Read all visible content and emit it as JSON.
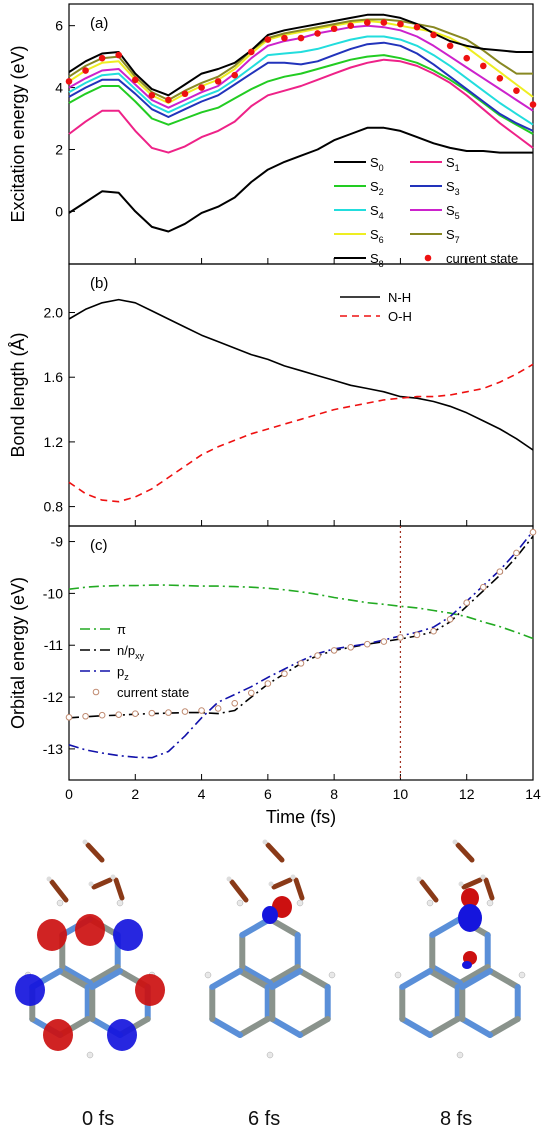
{
  "figure": {
    "x_label": "Time (fs)",
    "x_ticks": [
      "0",
      "2",
      "4",
      "6",
      "8",
      "10",
      "12",
      "14"
    ],
    "snapshot_labels": [
      "0 fs",
      "6 fs",
      "8 fs"
    ]
  },
  "chart_data": [
    {
      "panel_tag": "(a)",
      "type": "line",
      "ylabel": "Excitation energy (eV)",
      "xlim": [
        0,
        14
      ],
      "ylim": [
        -1.7,
        6.7
      ],
      "yticks": [
        "0",
        "2",
        "4",
        "6"
      ],
      "x": [
        0,
        0.5,
        1,
        1.5,
        2,
        2.5,
        3,
        3.5,
        4,
        4.5,
        5,
        5.5,
        6,
        6.5,
        7,
        7.5,
        8,
        8.5,
        9,
        9.5,
        10,
        10.5,
        11,
        11.5,
        12,
        12.5,
        13,
        13.5,
        14
      ],
      "legend_position": "bottom-right",
      "series": [
        {
          "name": "S0",
          "sub": "0",
          "color": "#000000",
          "values": [
            -0.05,
            0.3,
            0.65,
            0.6,
            0.0,
            -0.5,
            -0.65,
            -0.4,
            -0.05,
            0.15,
            0.45,
            0.95,
            1.35,
            1.6,
            1.8,
            2.0,
            2.3,
            2.5,
            2.7,
            2.7,
            2.6,
            2.4,
            2.2,
            2.05,
            1.95,
            1.95,
            1.9,
            1.9,
            1.9
          ]
        },
        {
          "name": "S1",
          "sub": "1",
          "color": "#ee2288",
          "values": [
            2.5,
            2.9,
            3.25,
            3.25,
            2.6,
            2.05,
            1.9,
            2.1,
            2.4,
            2.6,
            2.9,
            3.4,
            3.75,
            3.9,
            4.05,
            4.25,
            4.45,
            4.65,
            4.8,
            4.9,
            4.85,
            4.7,
            4.45,
            4.15,
            3.75,
            3.3,
            2.85,
            2.45,
            2.05
          ]
        },
        {
          "name": "S2",
          "sub": "2",
          "color": "#22cc22",
          "values": [
            3.5,
            3.8,
            4.05,
            4.05,
            3.55,
            3.0,
            2.8,
            3.0,
            3.2,
            3.35,
            3.65,
            3.95,
            4.2,
            4.35,
            4.45,
            4.6,
            4.75,
            4.9,
            5.0,
            5.05,
            4.95,
            4.8,
            4.55,
            4.25,
            3.9,
            3.5,
            3.1,
            2.8,
            2.5
          ]
        },
        {
          "name": "S3",
          "sub": "3",
          "color": "#2233bb",
          "values": [
            3.7,
            4.0,
            4.25,
            4.25,
            3.8,
            3.3,
            3.05,
            3.3,
            3.55,
            3.75,
            4.1,
            4.45,
            4.8,
            4.8,
            4.75,
            4.85,
            5.05,
            5.25,
            5.4,
            5.45,
            5.35,
            5.1,
            4.75,
            4.35,
            3.95,
            3.55,
            3.15,
            2.85,
            2.6
          ]
        },
        {
          "name": "S4",
          "sub": "4",
          "color": "#22dddd",
          "values": [
            3.85,
            4.15,
            4.4,
            4.45,
            3.95,
            3.45,
            3.2,
            3.45,
            3.7,
            3.9,
            4.25,
            4.65,
            5.05,
            5.1,
            5.15,
            5.25,
            5.4,
            5.55,
            5.65,
            5.65,
            5.55,
            5.35,
            5.05,
            4.7,
            4.3,
            3.9,
            3.5,
            3.15,
            2.8
          ]
        },
        {
          "name": "S5",
          "sub": "5",
          "color": "#cc22cc",
          "values": [
            4.0,
            4.3,
            4.55,
            4.6,
            4.1,
            3.6,
            3.35,
            3.6,
            3.85,
            4.05,
            4.45,
            4.95,
            5.35,
            5.5,
            5.6,
            5.75,
            5.85,
            5.95,
            6.0,
            5.95,
            5.85,
            5.65,
            5.35,
            5.0,
            4.65,
            4.3,
            3.95,
            3.6,
            3.25
          ]
        },
        {
          "name": "S6",
          "sub": "6",
          "color": "#eeee22",
          "values": [
            4.2,
            4.55,
            4.8,
            4.85,
            4.25,
            3.75,
            3.5,
            3.8,
            4.05,
            4.25,
            4.6,
            5.1,
            5.55,
            5.7,
            5.8,
            5.9,
            6.0,
            6.1,
            6.15,
            6.1,
            6.0,
            5.9,
            5.8,
            5.6,
            5.3,
            4.9,
            4.5,
            4.1,
            3.7
          ]
        },
        {
          "name": "S7",
          "sub": "7",
          "color": "#888822",
          "values": [
            4.35,
            4.7,
            4.95,
            5.0,
            4.35,
            3.85,
            3.6,
            3.9,
            4.15,
            4.35,
            4.7,
            5.2,
            5.6,
            5.75,
            5.85,
            5.95,
            6.05,
            6.15,
            6.2,
            6.2,
            6.15,
            6.05,
            5.95,
            5.75,
            5.55,
            5.2,
            4.8,
            4.45,
            4.45
          ]
        },
        {
          "name": "S8",
          "sub": "8",
          "color": "#000000",
          "values": [
            4.5,
            4.85,
            5.1,
            5.15,
            4.45,
            3.95,
            3.75,
            4.1,
            4.45,
            4.6,
            4.8,
            5.2,
            5.7,
            5.85,
            5.95,
            6.05,
            6.15,
            6.25,
            6.35,
            6.35,
            6.25,
            6.05,
            5.75,
            5.5,
            5.35,
            5.25,
            5.2,
            5.15,
            5.15
          ]
        },
        {
          "name": "current state",
          "marker": "dot",
          "color": "#ee1111",
          "x": [
            0,
            0.5,
            1,
            1.5,
            2,
            2.5,
            3,
            3.5,
            4,
            4.5,
            5,
            5.5,
            6,
            6.5,
            7,
            7.5,
            8,
            8.5,
            9,
            9.5,
            10,
            10.5,
            11,
            11.5,
            12,
            12.5,
            13,
            13.5,
            14
          ],
          "values": [
            4.2,
            4.55,
            4.95,
            5.05,
            4.25,
            3.75,
            3.6,
            3.8,
            4.0,
            4.2,
            4.4,
            5.15,
            5.55,
            5.6,
            5.6,
            5.75,
            5.9,
            6.0,
            6.1,
            6.1,
            6.05,
            5.95,
            5.7,
            5.35,
            4.95,
            4.7,
            4.3,
            3.9,
            3.45
          ]
        }
      ]
    },
    {
      "panel_tag": "(b)",
      "type": "line",
      "ylabel": "Bond length (Å)",
      "xlim": [
        0,
        14
      ],
      "ylim": [
        0.68,
        2.3
      ],
      "yticks": [
        "0.8",
        "1.2",
        "1.6",
        "2.0"
      ],
      "x": [
        0,
        0.5,
        1,
        1.5,
        2,
        2.5,
        3,
        3.5,
        4,
        4.5,
        5,
        5.5,
        6,
        6.5,
        7,
        7.5,
        8,
        8.5,
        9,
        9.5,
        10,
        10.5,
        11,
        11.5,
        12,
        12.5,
        13,
        13.5,
        14
      ],
      "legend_position": "top-right",
      "series": [
        {
          "name": "N-H",
          "color": "#000000",
          "dash": "",
          "values": [
            1.96,
            2.02,
            2.06,
            2.08,
            2.06,
            2.01,
            1.96,
            1.91,
            1.86,
            1.82,
            1.78,
            1.74,
            1.71,
            1.67,
            1.64,
            1.61,
            1.58,
            1.55,
            1.53,
            1.51,
            1.48,
            1.47,
            1.45,
            1.42,
            1.38,
            1.33,
            1.28,
            1.22,
            1.15
          ]
        },
        {
          "name": "O-H",
          "color": "#ee1111",
          "dash": "7,5",
          "values": [
            0.95,
            0.88,
            0.84,
            0.83,
            0.86,
            0.91,
            0.98,
            1.05,
            1.12,
            1.17,
            1.21,
            1.25,
            1.28,
            1.31,
            1.34,
            1.37,
            1.4,
            1.42,
            1.44,
            1.46,
            1.47,
            1.48,
            1.48,
            1.49,
            1.51,
            1.53,
            1.57,
            1.62,
            1.68
          ]
        }
      ]
    },
    {
      "panel_tag": "(c)",
      "type": "line",
      "ylabel": "Orbital energy (eV)",
      "xlim": [
        0,
        14
      ],
      "ylim": [
        -13.6,
        -8.7
      ],
      "yticks": [
        "-13",
        "-12",
        "-11",
        "-10",
        "-9"
      ],
      "x": [
        0,
        0.5,
        1,
        1.5,
        2,
        2.5,
        3,
        3.5,
        4,
        4.5,
        5,
        5.5,
        6,
        6.5,
        7,
        7.5,
        8,
        8.5,
        9,
        9.5,
        10,
        10.5,
        11,
        11.5,
        12,
        12.5,
        13,
        13.5,
        14
      ],
      "marker_line_x": 10,
      "legend_position": "middle-left",
      "series": [
        {
          "name": "π",
          "color": "#22aa22",
          "dash": "10,4,2,4",
          "values": [
            -9.92,
            -9.88,
            -9.86,
            -9.85,
            -9.85,
            -9.84,
            -9.84,
            -9.85,
            -9.86,
            -9.86,
            -9.87,
            -9.88,
            -9.9,
            -9.93,
            -9.97,
            -10.02,
            -10.08,
            -10.13,
            -10.18,
            -10.21,
            -10.25,
            -10.28,
            -10.33,
            -10.38,
            -10.45,
            -10.55,
            -10.64,
            -10.75,
            -10.87
          ]
        },
        {
          "name": "n/p",
          "sub": "xy",
          "color": "#000000",
          "dash": "10,4,2,4",
          "values": [
            -12.4,
            -12.38,
            -12.36,
            -12.35,
            -12.33,
            -12.32,
            -12.31,
            -12.3,
            -12.3,
            -12.32,
            -12.26,
            -12.0,
            -11.75,
            -11.55,
            -11.35,
            -11.2,
            -11.1,
            -11.04,
            -10.98,
            -10.93,
            -10.88,
            -10.82,
            -10.74,
            -10.55,
            -10.25,
            -9.95,
            -9.65,
            -9.3,
            -8.9
          ]
        },
        {
          "name": "p",
          "sub": "z",
          "color": "#1111aa",
          "dash": "10,4,2,4",
          "values": [
            -12.92,
            -13.02,
            -13.08,
            -13.13,
            -13.16,
            -13.17,
            -13.05,
            -12.75,
            -12.4,
            -12.1,
            -11.95,
            -11.8,
            -11.62,
            -11.46,
            -11.3,
            -11.16,
            -11.07,
            -11.02,
            -10.97,
            -10.9,
            -10.82,
            -10.75,
            -10.65,
            -10.45,
            -10.15,
            -9.85,
            -9.55,
            -9.2,
            -8.8
          ]
        },
        {
          "name": "current state",
          "marker": "ring",
          "color": "#c08a70",
          "x": [
            0,
            0.5,
            1,
            1.5,
            2,
            2.5,
            3,
            3.5,
            4,
            4.5,
            5,
            5.5,
            6,
            6.5,
            7,
            7.5,
            8,
            8.5,
            9,
            9.5,
            10,
            10.5,
            11,
            11.5,
            12,
            12.5,
            13,
            13.5,
            14
          ],
          "values": [
            -12.39,
            -12.37,
            -12.35,
            -12.34,
            -12.32,
            -12.31,
            -12.3,
            -12.28,
            -12.26,
            -12.22,
            -12.12,
            -11.92,
            -11.74,
            -11.55,
            -11.35,
            -11.2,
            -11.1,
            -11.04,
            -10.98,
            -10.93,
            -10.85,
            -10.8,
            -10.73,
            -10.5,
            -10.18,
            -9.88,
            -9.58,
            -9.22,
            -8.82
          ]
        }
      ]
    }
  ],
  "colors": {
    "orbital_red": "#cc1010",
    "orbital_blue": "#1515dd",
    "carbon": "#8a938c",
    "nitrogen": "#5a8fd8",
    "oxygen_bond": "#8a3a18"
  }
}
